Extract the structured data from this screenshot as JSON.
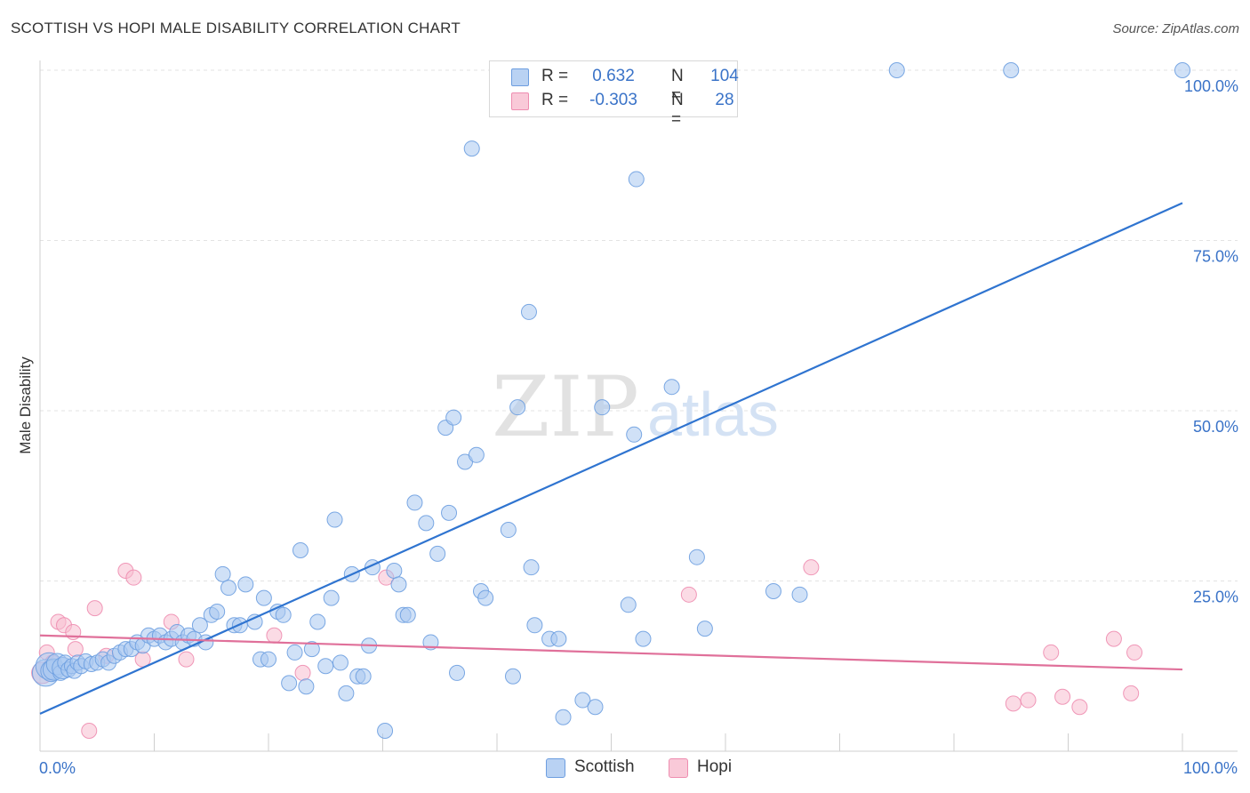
{
  "header": {
    "title": "SCOTTISH VS HOPI MALE DISABILITY CORRELATION CHART",
    "source": "Source: ZipAtlas.com"
  },
  "legend": {
    "rows": [
      {
        "r_label": "R =",
        "r_value": "0.632",
        "n_label": "N =",
        "n_value": "104",
        "color": "#9bbfee"
      },
      {
        "r_label": "R =",
        "r_value": "-0.303",
        "n_label": "N =",
        "n_value": "28",
        "color": "#f4b1c8"
      }
    ]
  },
  "bottom_legend": [
    {
      "label": "Scottish",
      "color": "#9bbfee"
    },
    {
      "label": "Hopi",
      "color": "#f4b1c8"
    }
  ],
  "watermark": {
    "part1": "ZIP",
    "part2": "atlas"
  },
  "colors": {
    "scottish_fill": "#a9c8f0",
    "scottish_stroke": "#6d9ee0",
    "scottish_line": "#2f74d0",
    "hopi_fill": "#f7bdd0",
    "hopi_stroke": "#ee8db0",
    "hopi_line": "#e0709a",
    "axis_label": "#3a73c8"
  },
  "chart_data": {
    "type": "scatter",
    "title": "SCOTTISH VS HOPI MALE DISABILITY CORRELATION CHART",
    "ylabel": "Male Disability",
    "xlabel": "",
    "xlim": [
      0,
      100
    ],
    "ylim": [
      0,
      100
    ],
    "x_tick_labels": {
      "min": "0.0%",
      "max": "100.0%"
    },
    "y_tick_labels": [
      {
        "value": 25,
        "label": "25.0%"
      },
      {
        "value": 50,
        "label": "50.0%"
      },
      {
        "value": 75,
        "label": "75.0%"
      },
      {
        "value": 100,
        "label": "100.0%"
      }
    ],
    "grid": "horizontal dashed",
    "legend_position": "top-center",
    "series": [
      {
        "name": "Scottish",
        "r": 0.632,
        "n": 104,
        "trend": {
          "x": [
            0,
            100
          ],
          "y": [
            5.5,
            80.5
          ]
        },
        "points": [
          {
            "x": 0.5,
            "y": 11.5,
            "s": 3
          },
          {
            "x": 0.8,
            "y": 12.5,
            "s": 3
          },
          {
            "x": 1.0,
            "y": 11.8,
            "s": 2
          },
          {
            "x": 1.2,
            "y": 12.0,
            "s": 2
          },
          {
            "x": 1.5,
            "y": 12.8,
            "s": 2
          },
          {
            "x": 1.8,
            "y": 11.5,
            "s": 1
          },
          {
            "x": 2.0,
            "y": 12.2,
            "s": 2
          },
          {
            "x": 2.2,
            "y": 13.0,
            "s": 1
          },
          {
            "x": 2.5,
            "y": 12.0,
            "s": 1
          },
          {
            "x": 2.8,
            "y": 12.5,
            "s": 1
          },
          {
            "x": 3.0,
            "y": 11.8,
            "s": 1
          },
          {
            "x": 3.3,
            "y": 13.0,
            "s": 1
          },
          {
            "x": 3.6,
            "y": 12.5,
            "s": 1
          },
          {
            "x": 4.0,
            "y": 13.2,
            "s": 1
          },
          {
            "x": 4.5,
            "y": 12.8,
            "s": 1
          },
          {
            "x": 5.0,
            "y": 13.0,
            "s": 1
          },
          {
            "x": 5.5,
            "y": 13.5,
            "s": 1
          },
          {
            "x": 6.0,
            "y": 13.0,
            "s": 1
          },
          {
            "x": 6.5,
            "y": 14.0,
            "s": 1
          },
          {
            "x": 7.0,
            "y": 14.5,
            "s": 1
          },
          {
            "x": 7.5,
            "y": 15.0,
            "s": 1
          },
          {
            "x": 8.0,
            "y": 15.0,
            "s": 1
          },
          {
            "x": 8.5,
            "y": 16.0,
            "s": 1
          },
          {
            "x": 9.0,
            "y": 15.5,
            "s": 1
          },
          {
            "x": 9.5,
            "y": 17.0,
            "s": 1
          },
          {
            "x": 10.0,
            "y": 16.5,
            "s": 1
          },
          {
            "x": 10.5,
            "y": 17.0,
            "s": 1
          },
          {
            "x": 11.0,
            "y": 16.0,
            "s": 1
          },
          {
            "x": 11.5,
            "y": 16.5,
            "s": 1
          },
          {
            "x": 12.0,
            "y": 17.5,
            "s": 1
          },
          {
            "x": 12.5,
            "y": 16.0,
            "s": 1
          },
          {
            "x": 13.0,
            "y": 17.0,
            "s": 1
          },
          {
            "x": 13.5,
            "y": 16.5,
            "s": 1
          },
          {
            "x": 14.0,
            "y": 18.5,
            "s": 1
          },
          {
            "x": 14.5,
            "y": 16.0,
            "s": 1
          },
          {
            "x": 15.0,
            "y": 20.0,
            "s": 1
          },
          {
            "x": 15.5,
            "y": 20.5,
            "s": 1
          },
          {
            "x": 16.0,
            "y": 26.0,
            "s": 1
          },
          {
            "x": 16.5,
            "y": 24.0,
            "s": 1
          },
          {
            "x": 17.0,
            "y": 18.5,
            "s": 1
          },
          {
            "x": 17.5,
            "y": 18.5,
            "s": 1
          },
          {
            "x": 18.0,
            "y": 24.5,
            "s": 1
          },
          {
            "x": 18.8,
            "y": 19.0,
            "s": 1
          },
          {
            "x": 19.3,
            "y": 13.5,
            "s": 1
          },
          {
            "x": 19.6,
            "y": 22.5,
            "s": 1
          },
          {
            "x": 20.0,
            "y": 13.5,
            "s": 1
          },
          {
            "x": 20.8,
            "y": 20.5,
            "s": 1
          },
          {
            "x": 21.3,
            "y": 20.0,
            "s": 1
          },
          {
            "x": 21.8,
            "y": 10.0,
            "s": 1
          },
          {
            "x": 22.3,
            "y": 14.5,
            "s": 1
          },
          {
            "x": 22.8,
            "y": 29.5,
            "s": 1
          },
          {
            "x": 23.3,
            "y": 9.5,
            "s": 1
          },
          {
            "x": 23.8,
            "y": 15.0,
            "s": 1
          },
          {
            "x": 24.3,
            "y": 19.0,
            "s": 1
          },
          {
            "x": 25.0,
            "y": 12.5,
            "s": 1
          },
          {
            "x": 25.5,
            "y": 22.5,
            "s": 1
          },
          {
            "x": 25.8,
            "y": 34.0,
            "s": 1
          },
          {
            "x": 26.3,
            "y": 13.0,
            "s": 1
          },
          {
            "x": 26.8,
            "y": 8.5,
            "s": 1
          },
          {
            "x": 27.3,
            "y": 26.0,
            "s": 1
          },
          {
            "x": 27.8,
            "y": 11.0,
            "s": 1
          },
          {
            "x": 28.3,
            "y": 11.0,
            "s": 1
          },
          {
            "x": 28.8,
            "y": 15.5,
            "s": 1
          },
          {
            "x": 29.1,
            "y": 27.0,
            "s": 1
          },
          {
            "x": 30.2,
            "y": 3.0,
            "s": 1
          },
          {
            "x": 31.0,
            "y": 26.5,
            "s": 1
          },
          {
            "x": 31.4,
            "y": 24.5,
            "s": 1
          },
          {
            "x": 31.8,
            "y": 20.0,
            "s": 1
          },
          {
            "x": 32.2,
            "y": 20.0,
            "s": 1
          },
          {
            "x": 32.8,
            "y": 36.5,
            "s": 1
          },
          {
            "x": 33.8,
            "y": 33.5,
            "s": 1
          },
          {
            "x": 34.2,
            "y": 16.0,
            "s": 1
          },
          {
            "x": 34.8,
            "y": 29.0,
            "s": 1
          },
          {
            "x": 35.5,
            "y": 47.5,
            "s": 1
          },
          {
            "x": 35.8,
            "y": 35.0,
            "s": 1
          },
          {
            "x": 36.2,
            "y": 49.0,
            "s": 1
          },
          {
            "x": 36.5,
            "y": 11.5,
            "s": 1
          },
          {
            "x": 37.2,
            "y": 42.5,
            "s": 1
          },
          {
            "x": 37.8,
            "y": 88.5,
            "s": 1
          },
          {
            "x": 38.2,
            "y": 43.5,
            "s": 1
          },
          {
            "x": 38.6,
            "y": 23.5,
            "s": 1
          },
          {
            "x": 39.0,
            "y": 22.5,
            "s": 1
          },
          {
            "x": 41.0,
            "y": 32.5,
            "s": 1
          },
          {
            "x": 41.4,
            "y": 11.0,
            "s": 1
          },
          {
            "x": 41.8,
            "y": 50.5,
            "s": 1
          },
          {
            "x": 42.8,
            "y": 64.5,
            "s": 1
          },
          {
            "x": 43.0,
            "y": 27.0,
            "s": 1
          },
          {
            "x": 43.3,
            "y": 18.5,
            "s": 1
          },
          {
            "x": 44.6,
            "y": 16.5,
            "s": 1
          },
          {
            "x": 45.4,
            "y": 16.5,
            "s": 1
          },
          {
            "x": 45.8,
            "y": 5.0,
            "s": 1
          },
          {
            "x": 47.5,
            "y": 7.5,
            "s": 1
          },
          {
            "x": 48.6,
            "y": 6.5,
            "s": 1
          },
          {
            "x": 49.2,
            "y": 50.5,
            "s": 1
          },
          {
            "x": 51.5,
            "y": 21.5,
            "s": 1
          },
          {
            "x": 52.0,
            "y": 46.5,
            "s": 1
          },
          {
            "x": 52.2,
            "y": 84.0,
            "s": 1
          },
          {
            "x": 52.8,
            "y": 16.5,
            "s": 1
          },
          {
            "x": 55.3,
            "y": 53.5,
            "s": 1
          },
          {
            "x": 57.5,
            "y": 28.5,
            "s": 1
          },
          {
            "x": 58.2,
            "y": 18.0,
            "s": 1
          },
          {
            "x": 64.2,
            "y": 23.5,
            "s": 1
          },
          {
            "x": 66.5,
            "y": 23.0,
            "s": 1
          },
          {
            "x": 75.0,
            "y": 100.0,
            "s": 1
          },
          {
            "x": 85.0,
            "y": 100.0,
            "s": 1
          },
          {
            "x": 100.0,
            "y": 100.0,
            "s": 1
          }
        ]
      },
      {
        "name": "Hopi",
        "r": -0.303,
        "n": 28,
        "trend": {
          "x": [
            0,
            100
          ],
          "y": [
            17.0,
            12.0
          ]
        },
        "points": [
          {
            "x": 0.2,
            "y": 11.5,
            "s": 2
          },
          {
            "x": 0.6,
            "y": 14.5,
            "s": 1
          },
          {
            "x": 1.1,
            "y": 13.0,
            "s": 1
          },
          {
            "x": 1.6,
            "y": 19.0,
            "s": 1
          },
          {
            "x": 2.1,
            "y": 18.5,
            "s": 1
          },
          {
            "x": 2.9,
            "y": 17.5,
            "s": 1
          },
          {
            "x": 3.1,
            "y": 15.0,
            "s": 1
          },
          {
            "x": 4.3,
            "y": 3.0,
            "s": 1
          },
          {
            "x": 4.8,
            "y": 21.0,
            "s": 1
          },
          {
            "x": 5.8,
            "y": 14.0,
            "s": 1
          },
          {
            "x": 7.5,
            "y": 26.5,
            "s": 1
          },
          {
            "x": 8.2,
            "y": 25.5,
            "s": 1
          },
          {
            "x": 9.0,
            "y": 13.5,
            "s": 1
          },
          {
            "x": 11.5,
            "y": 19.0,
            "s": 1
          },
          {
            "x": 12.8,
            "y": 13.5,
            "s": 1
          },
          {
            "x": 20.5,
            "y": 17.0,
            "s": 1
          },
          {
            "x": 23.0,
            "y": 11.5,
            "s": 1
          },
          {
            "x": 30.3,
            "y": 25.5,
            "s": 1
          },
          {
            "x": 56.8,
            "y": 23.0,
            "s": 1
          },
          {
            "x": 67.5,
            "y": 27.0,
            "s": 1
          },
          {
            "x": 85.2,
            "y": 7.0,
            "s": 1
          },
          {
            "x": 86.5,
            "y": 7.5,
            "s": 1
          },
          {
            "x": 88.5,
            "y": 14.5,
            "s": 1
          },
          {
            "x": 89.5,
            "y": 8.0,
            "s": 1
          },
          {
            "x": 91.0,
            "y": 6.5,
            "s": 1
          },
          {
            "x": 94.0,
            "y": 16.5,
            "s": 1
          },
          {
            "x": 95.5,
            "y": 8.5,
            "s": 1
          },
          {
            "x": 95.8,
            "y": 14.5,
            "s": 1
          }
        ]
      }
    ]
  }
}
